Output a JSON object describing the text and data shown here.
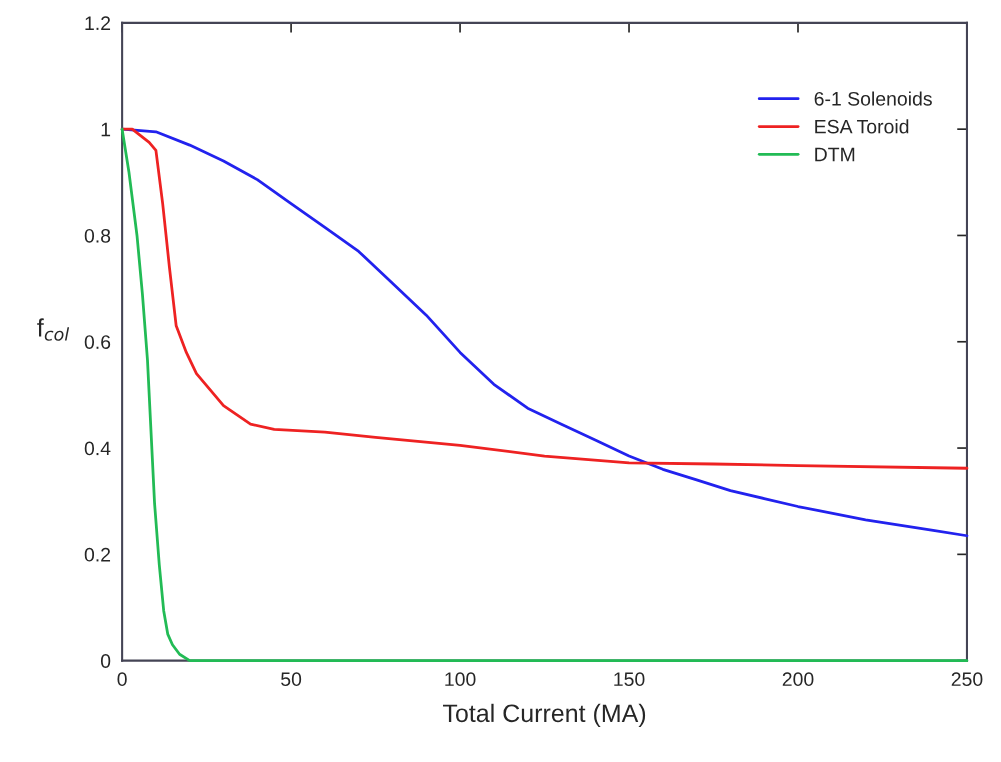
{
  "chart_data": {
    "type": "line",
    "xlabel": "Total Current (MA)",
    "ylabel": "f$_{col}$",
    "xlim": [
      0,
      250
    ],
    "ylim": [
      0,
      1.2
    ],
    "xticks": [
      0,
      50,
      100,
      150,
      200,
      250
    ],
    "yticks": [
      0,
      0.2,
      0.4,
      0.6,
      0.8,
      1,
      1.2
    ],
    "grid": false,
    "legend": "top right",
    "line_style": "solid",
    "series": [
      {
        "name": "6-1 Solenoids",
        "color": "#2222ee",
        "x": [
          0,
          10,
          20,
          30,
          40,
          50,
          60,
          70,
          80,
          90,
          100,
          110,
          120,
          130,
          140,
          150,
          160,
          170,
          180,
          190,
          200,
          220,
          240,
          250
        ],
        "values": [
          1,
          0.995,
          0.97,
          0.94,
          0.905,
          0.86,
          0.815,
          0.77,
          0.71,
          0.65,
          0.58,
          0.52,
          0.475,
          0.445,
          0.415,
          0.385,
          0.36,
          0.34,
          0.32,
          0.305,
          0.29,
          0.265,
          0.245,
          0.235
        ]
      },
      {
        "name": "ESA Toroid",
        "color": "#ee2222",
        "x": [
          0,
          3,
          8,
          10,
          12,
          13,
          14,
          16,
          19,
          22,
          30,
          38,
          45,
          60,
          75,
          100,
          125,
          150,
          175,
          200,
          250
        ],
        "values": [
          1,
          1,
          0.975,
          0.96,
          0.86,
          0.8,
          0.74,
          0.63,
          0.58,
          0.54,
          0.48,
          0.445,
          0.435,
          0.43,
          0.42,
          0.405,
          0.385,
          0.372,
          0.37,
          0.367,
          0.362
        ]
      },
      {
        "name": "DTM",
        "color": "#22bb55",
        "x": [
          0,
          2,
          4.4,
          6,
          7.5,
          9.6,
          11,
          12.3,
          13.5,
          14.9,
          17,
          20,
          50,
          100,
          150,
          200,
          250
        ],
        "values": [
          1,
          0.92,
          0.8,
          0.69,
          0.566,
          0.296,
          0.18,
          0.094,
          0.05,
          0.03,
          0.012,
          0,
          0,
          0,
          0,
          0,
          0
        ]
      }
    ]
  }
}
